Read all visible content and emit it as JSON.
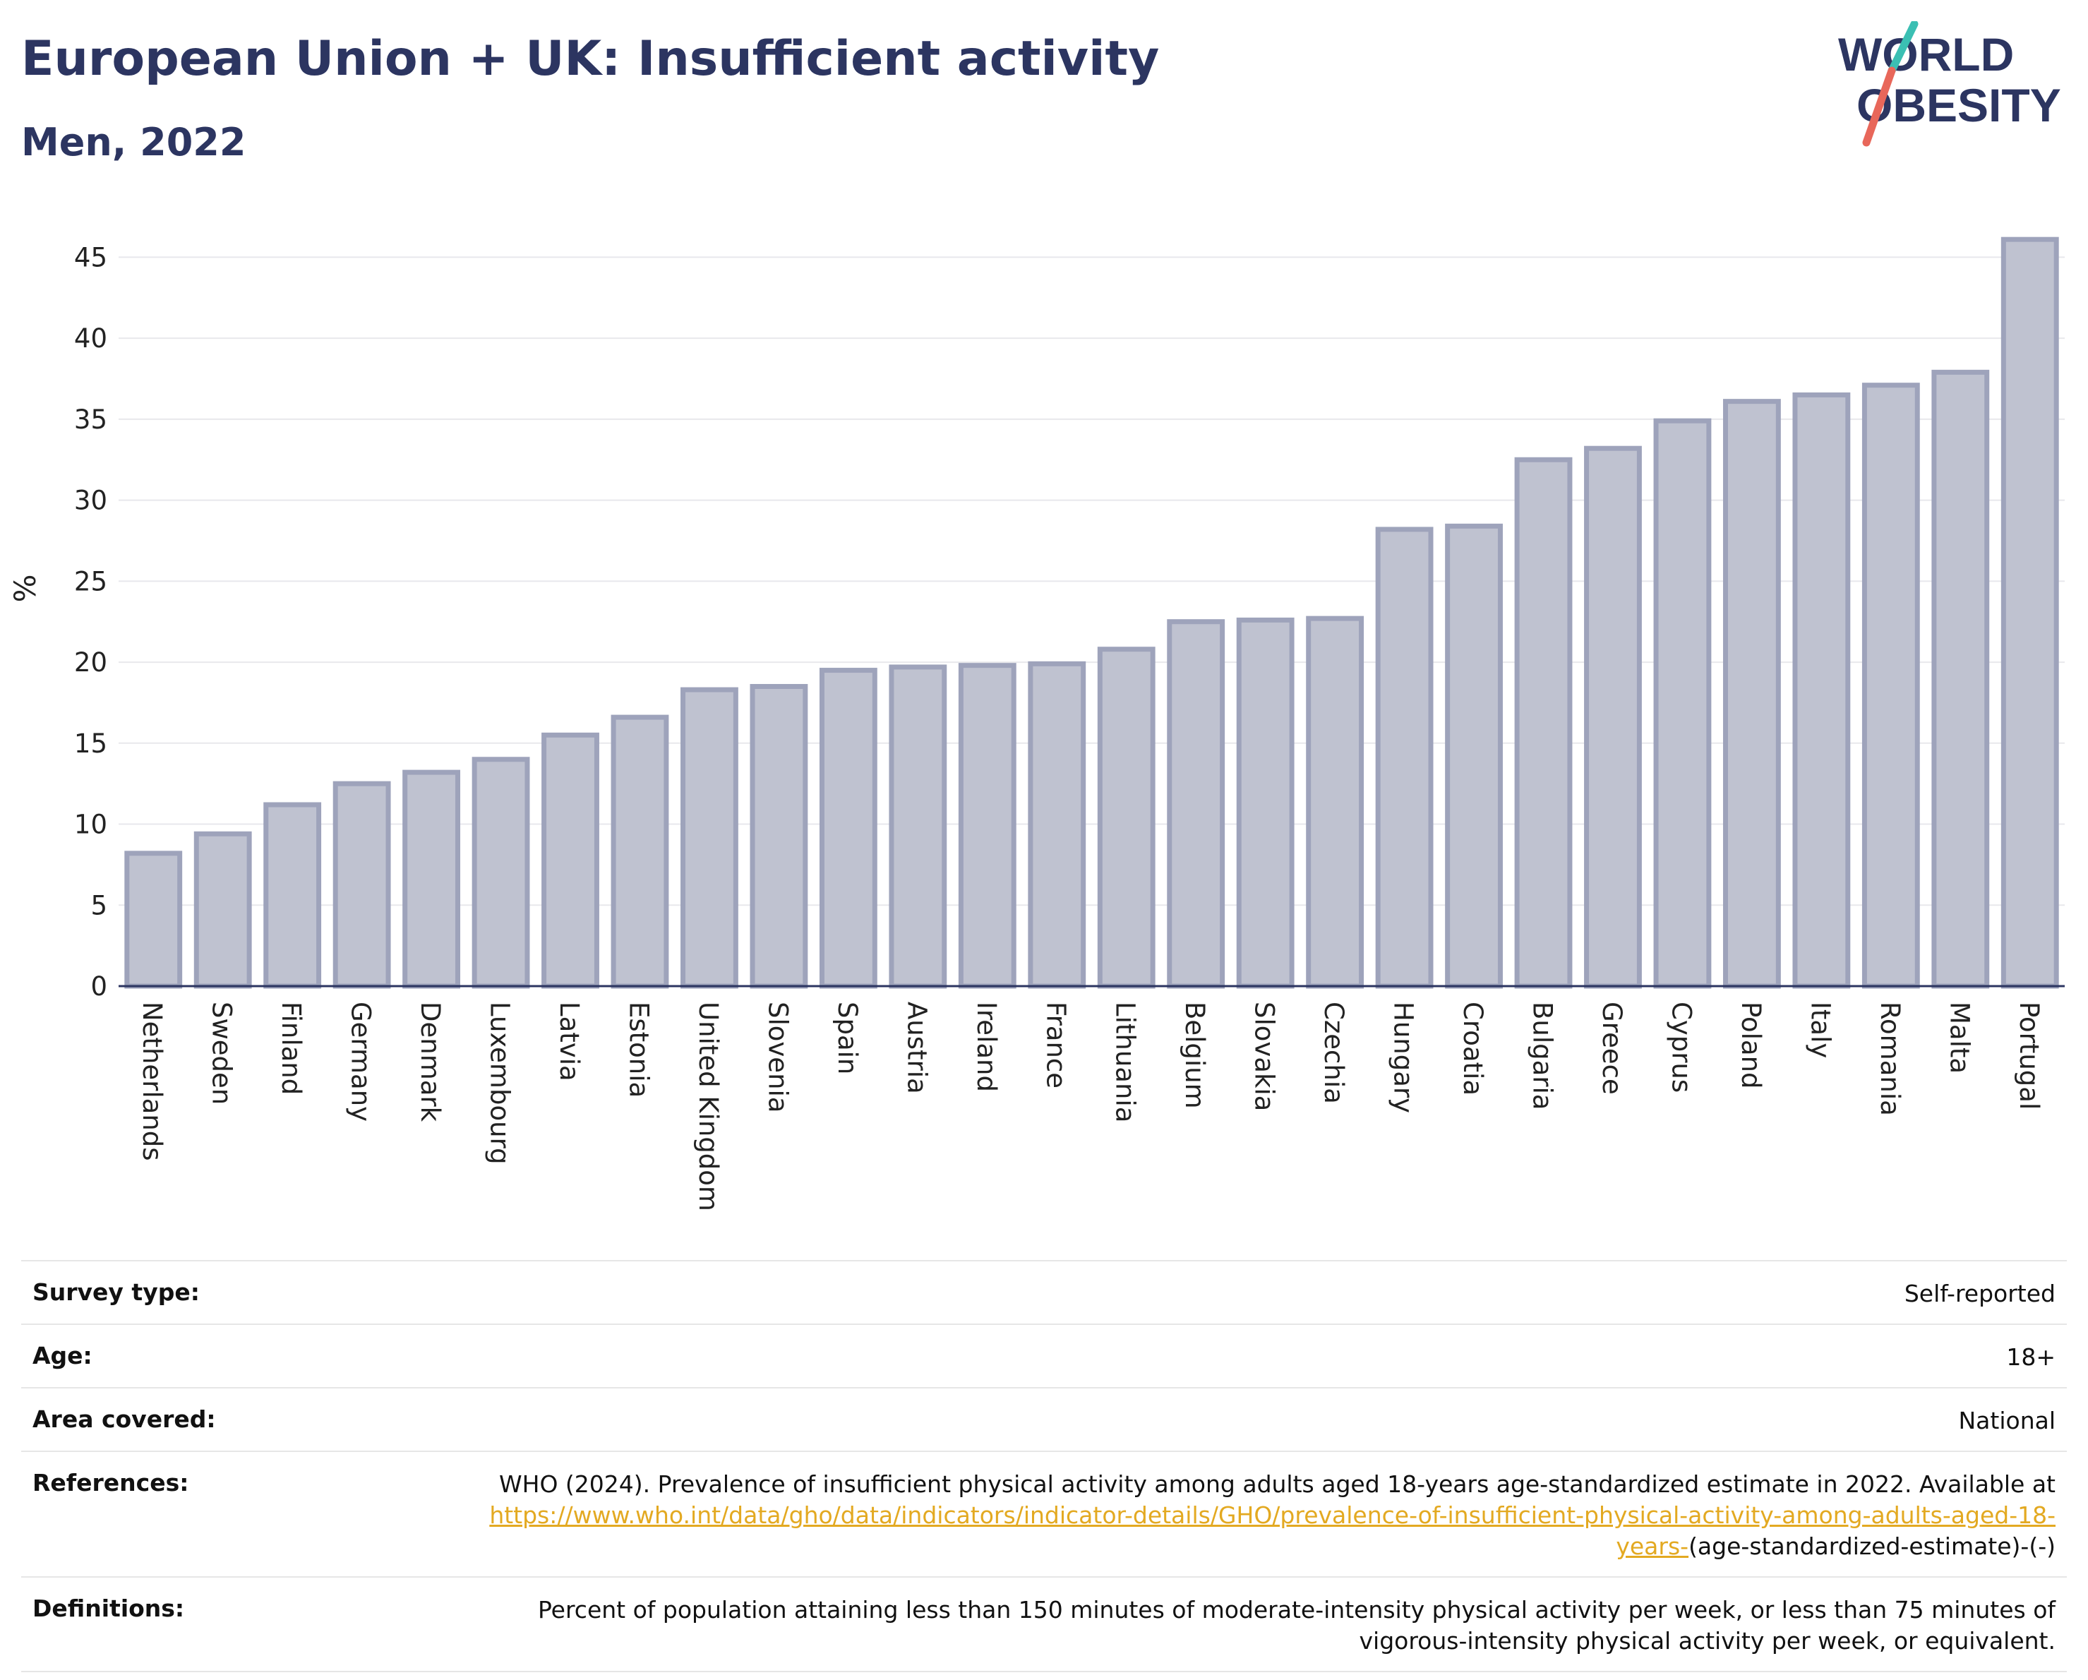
{
  "header": {
    "title": "European Union + UK: Insufficient activity",
    "subtitle": "Men, 2022",
    "logo_text_line1": "WORLD",
    "logo_text_line2": "OBESITY"
  },
  "colors": {
    "bar_fill": "#bfc2d0",
    "bar_stroke": "#9ea3bb",
    "title": "#2c3561",
    "link": "#e3a921",
    "logo_slash_top": "#3bbfb3",
    "logo_slash_bottom": "#e8675a"
  },
  "chart_data": {
    "type": "bar",
    "title": "European Union + UK: Insufficient activity",
    "subtitle": "Men, 2022",
    "ylabel": "%",
    "xlabel": "",
    "ylim": [
      0,
      46.5
    ],
    "yticks": [
      0,
      5,
      10,
      15,
      20,
      25,
      30,
      35,
      40,
      45
    ],
    "grid": true,
    "categories": [
      "Netherlands",
      "Sweden",
      "Finland",
      "Germany",
      "Denmark",
      "Luxembourg",
      "Latvia",
      "Estonia",
      "United Kingdom",
      "Slovenia",
      "Spain",
      "Austria",
      "Ireland",
      "France",
      "Lithuania",
      "Belgium",
      "Slovakia",
      "Czechia",
      "Hungary",
      "Croatia",
      "Bulgaria",
      "Greece",
      "Cyprus",
      "Poland",
      "Italy",
      "Romania",
      "Malta",
      "Portugal"
    ],
    "values": [
      8.2,
      9.4,
      11.2,
      12.5,
      13.2,
      14.0,
      15.5,
      16.6,
      18.3,
      18.5,
      19.5,
      19.7,
      19.8,
      19.9,
      20.8,
      22.5,
      22.6,
      22.7,
      28.2,
      28.4,
      32.5,
      33.2,
      34.9,
      36.1,
      36.5,
      37.1,
      37.9,
      46.1
    ]
  },
  "meta": {
    "survey_type": {
      "label": "Survey type:",
      "value": "Self-reported"
    },
    "age": {
      "label": "Age:",
      "value": "18+"
    },
    "area": {
      "label": "Area covered:",
      "value": "National"
    },
    "references": {
      "label": "References:",
      "text": "WHO (2024). Prevalence of insufficient physical activity among adults aged 18-years age-standardized estimate in 2022. Available at",
      "link": "https://www.who.int/data/gho/data/indicators/indicator-details/GHO/prevalence-of-insufficient-physical-activity-among-adults-aged-18-years-",
      "suffix": "(age-standardized-estimate)-(-)"
    },
    "definitions": {
      "label": "Definitions:",
      "value": "Percent of population attaining less than 150 minutes of moderate-intensity physical activity per week, or less than 75 minutes of vigorous-intensity physical activity per week, or equivalent."
    }
  }
}
